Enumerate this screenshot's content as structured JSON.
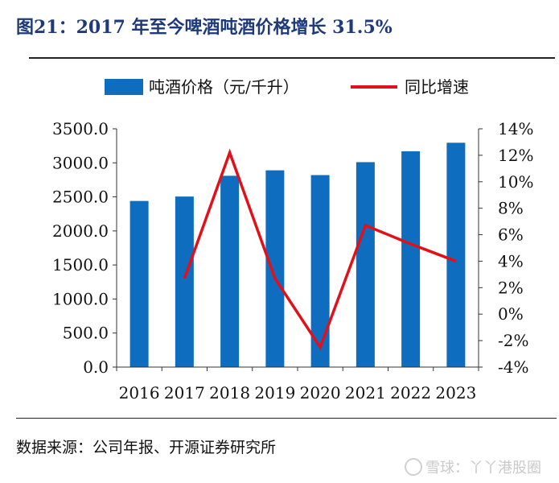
{
  "header": {
    "title": "图21：2017 年至今啤酒吨酒价格增长 31.5%"
  },
  "footer": {
    "source": "数据来源：公司年报、开源证券研究所",
    "watermark": "雪球：丫丫港股圈"
  },
  "colors": {
    "bar": "#0e6dbf",
    "line": "#e0111a",
    "title": "#1f3a7a"
  },
  "chart_data": {
    "type": "bar",
    "title": "",
    "categories": [
      "2016",
      "2017",
      "2018",
      "2019",
      "2020",
      "2021",
      "2022",
      "2023"
    ],
    "series": [
      {
        "name": "吨酒价格（元/千升）",
        "type": "bar",
        "axis": "left",
        "values": [
          2440,
          2505,
          2810,
          2890,
          2820,
          3010,
          3170,
          3295
        ]
      },
      {
        "name": "同比增速",
        "type": "line",
        "axis": "right",
        "values": [
          null,
          2.7,
          12.2,
          2.7,
          -2.5,
          6.7,
          5.3,
          4.0
        ]
      }
    ],
    "ylim_left": [
      0,
      3500
    ],
    "yticks_left": [
      "0.0",
      "500.0",
      "1000.0",
      "1500.0",
      "2000.0",
      "2500.0",
      "3000.0",
      "3500.0"
    ],
    "ylim_right": [
      -4,
      14
    ],
    "yticks_right": [
      "-4%",
      "-2%",
      "0%",
      "2%",
      "4%",
      "6%",
      "8%",
      "10%",
      "12%",
      "14%"
    ],
    "grid": false,
    "legend_position": "top"
  }
}
